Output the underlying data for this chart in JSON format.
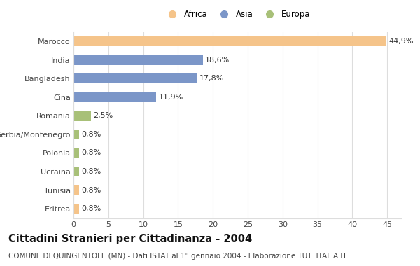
{
  "categories": [
    "Marocco",
    "India",
    "Bangladesh",
    "Cina",
    "Romania",
    "Serbia/Montenegro",
    "Polonia",
    "Ucraina",
    "Tunisia",
    "Eritrea"
  ],
  "values": [
    44.9,
    18.6,
    17.8,
    11.9,
    2.5,
    0.8,
    0.8,
    0.8,
    0.8,
    0.8
  ],
  "labels": [
    "44,9%",
    "18,6%",
    "17,8%",
    "11,9%",
    "2,5%",
    "0,8%",
    "0,8%",
    "0,8%",
    "0,8%",
    "0,8%"
  ],
  "colors": [
    "#f5c48a",
    "#7b96c8",
    "#7b96c8",
    "#7b96c8",
    "#a8c078",
    "#a8c078",
    "#a8c078",
    "#a8c078",
    "#f5c48a",
    "#f5c48a"
  ],
  "legend_labels": [
    "Africa",
    "Asia",
    "Europa"
  ],
  "legend_colors": [
    "#f5c48a",
    "#7b96c8",
    "#a8c078"
  ],
  "title": "Cittadini Stranieri per Cittadinanza - 2004",
  "subtitle": "COMUNE DI QUINGENTOLE (MN) - Dati ISTAT al 1° gennaio 2004 - Elaborazione TUTTITALIA.IT",
  "xlim": [
    0,
    47
  ],
  "xticks": [
    0,
    5,
    10,
    15,
    20,
    25,
    30,
    35,
    40,
    45
  ],
  "background_color": "#ffffff",
  "grid_color": "#dddddd",
  "bar_height": 0.55,
  "label_fontsize": 8,
  "title_fontsize": 10.5,
  "subtitle_fontsize": 7.5,
  "ytick_fontsize": 8,
  "xtick_fontsize": 8
}
